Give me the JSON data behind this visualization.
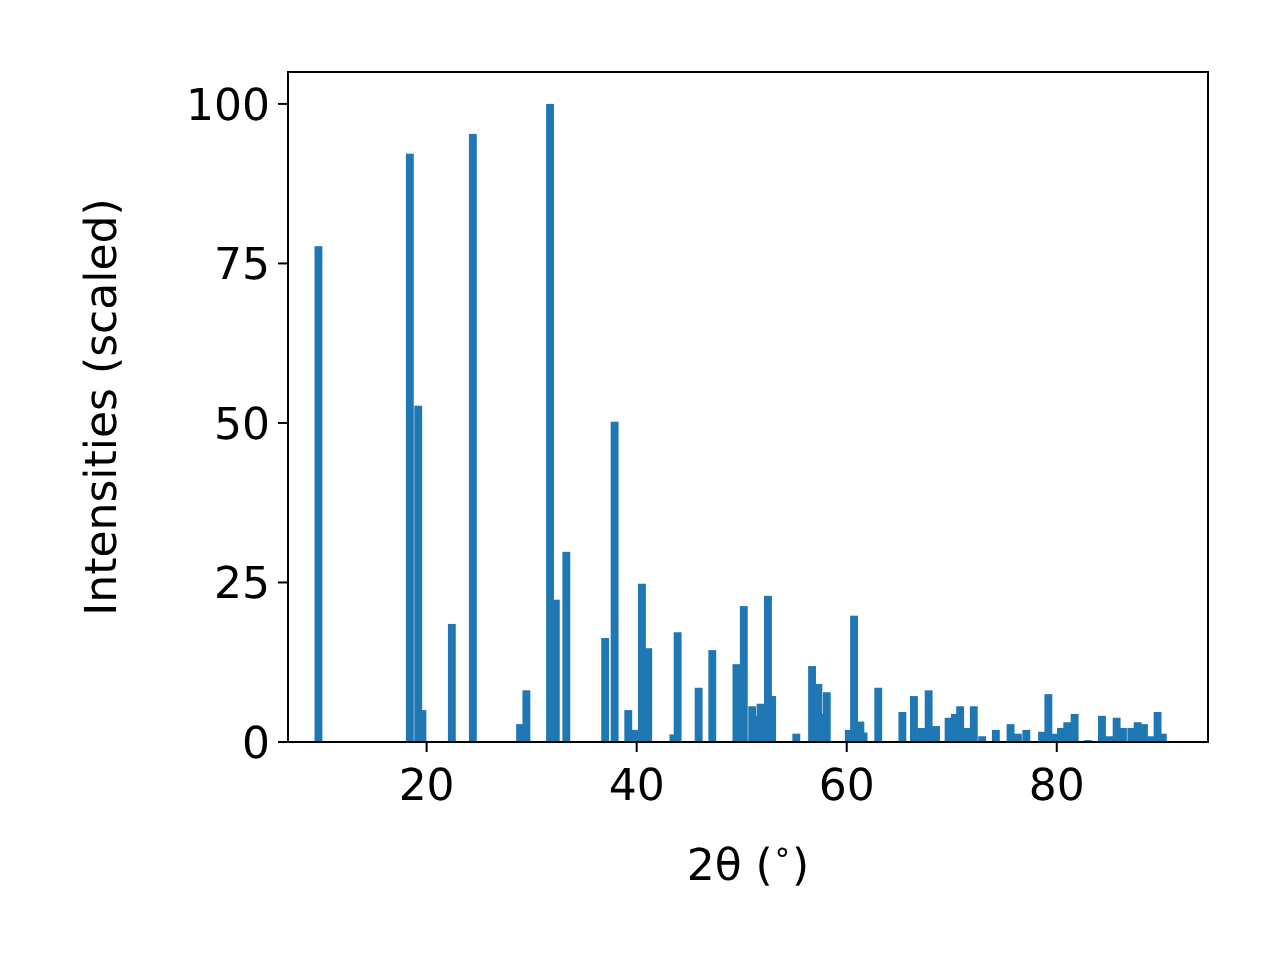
{
  "chart_data": {
    "type": "bar",
    "xlabel": "2θ ($^{∘}$)",
    "ylabel": "Intensities (scaled)",
    "x": [
      9.7,
      18.4,
      19.2,
      19.6,
      22.4,
      24.4,
      28.9,
      29.5,
      31.75,
      32.3,
      33.3,
      37.0,
      37.9,
      39.2,
      39.9,
      40.5,
      41.1,
      43.5,
      43.9,
      45.9,
      47.2,
      49.5,
      50.2,
      51.0,
      51.3,
      51.8,
      52.5,
      52.9,
      55.2,
      56.7,
      57.3,
      57.6,
      58.1,
      60.2,
      60.7,
      61.3,
      61.6,
      63.0,
      65.3,
      66.4,
      67.1,
      67.8,
      68.5,
      69.7,
      70.3,
      70.8,
      71.5,
      72.1,
      72.9,
      74.2,
      75.6,
      76.3,
      77.1,
      78.6,
      79.2,
      79.8,
      80.4,
      81.0,
      81.7,
      83.0,
      84.3,
      85.0,
      85.7,
      86.3,
      87.1,
      87.7,
      88.3,
      89.0,
      89.6,
      90.1
    ],
    "values": [
      77.7,
      92.2,
      52.7,
      5.0,
      18.5,
      95.3,
      2.8,
      8.1,
      100,
      22.3,
      29.8,
      16.3,
      50.2,
      5.0,
      1.9,
      24.8,
      14.7,
      1.2,
      17.2,
      8.5,
      14.4,
      12.2,
      21.3,
      5.6,
      4.1,
      6.0,
      22.9,
      7.2,
      1.3,
      11.9,
      9.1,
      4.4,
      7.8,
      1.9,
      19.8,
      3.2,
      1.5,
      8.5,
      4.7,
      7.2,
      2.2,
      8.1,
      2.5,
      3.8,
      4.4,
      5.6,
      2.2,
      5.6,
      0.9,
      1.9,
      2.8,
      1.3,
      1.9,
      1.6,
      7.5,
      1.3,
      2.2,
      3.1,
      4.4,
      0.3,
      4.1,
      0.9,
      3.8,
      2.2,
      2.2,
      3.1,
      2.8,
      0.9,
      4.7,
      1.3
    ],
    "color": "#1f77b4",
    "xlim": [
      6.8,
      94.4
    ],
    "xticks": [
      20,
      40,
      60,
      80
    ],
    "ylim": [
      0,
      105
    ],
    "yticks": [
      0,
      25,
      50,
      75,
      100
    ]
  }
}
